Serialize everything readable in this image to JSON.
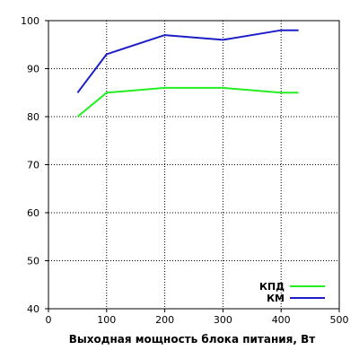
{
  "chart_data": {
    "type": "line",
    "xlabel": "Выходная мощность блока питания, Вт",
    "ylabel": "",
    "xlim": [
      0,
      500
    ],
    "ylim": [
      40,
      100
    ],
    "xticks": [
      "0",
      "100",
      "200",
      "300",
      "400",
      "500"
    ],
    "yticks": [
      "40",
      "50",
      "60",
      "70",
      "80",
      "90",
      "100"
    ],
    "grid": true,
    "legend_position": "bottom-right",
    "series": [
      {
        "name": "КПД",
        "color": "#22ee22",
        "x": [
          50,
          100,
          200,
          300,
          400,
          430
        ],
        "values": [
          80,
          85,
          86,
          86,
          85,
          85
        ]
      },
      {
        "name": "КМ",
        "color": "#1e1ec8",
        "x": [
          50,
          100,
          200,
          300,
          400,
          430
        ],
        "values": [
          85,
          93,
          97,
          96,
          98,
          98
        ]
      }
    ]
  }
}
